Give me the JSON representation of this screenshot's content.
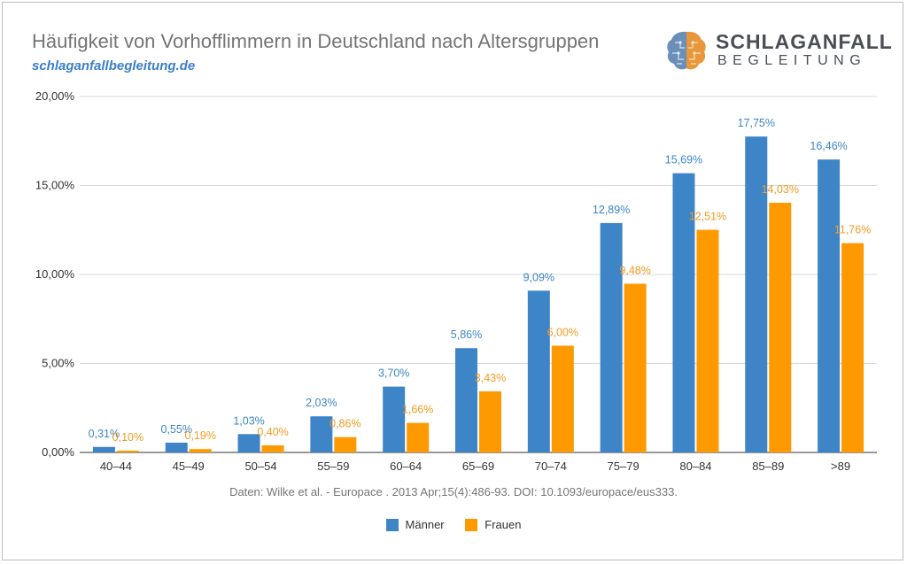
{
  "header": {
    "title": "Häufigkeit von Vorhofflimmern in Deutschland nach Altersgruppen",
    "subtitle": "schlaganfallbegleitung.de"
  },
  "logo": {
    "name": "SCHLAGANFALL",
    "tagline": "BEGLEITUNG",
    "icon": "brain-icon"
  },
  "source": "Daten: Wilke et al. - Europace . 2013 Apr;15(4):486-93. DOI: 10.1093/europace/eus333.",
  "colors": {
    "men": "#3d85c6",
    "women": "#ff9900",
    "men_label": "#3d85c6",
    "women_label": "#f29b21",
    "grid": "#d9d9d9",
    "axis_text": "#333333"
  },
  "chart_data": {
    "type": "bar",
    "categories": [
      "40–44",
      "45–49",
      "50–54",
      "55–59",
      "60–64",
      "65–69",
      "70–74",
      "75–79",
      "80–84",
      "85–89",
      ">89"
    ],
    "series": [
      {
        "name": "Männer",
        "values": [
          0.31,
          0.55,
          1.03,
          2.03,
          3.7,
          5.86,
          9.09,
          12.89,
          15.69,
          17.75,
          16.46
        ],
        "labels": [
          "0,31%",
          "0,55%",
          "1,03%",
          "2,03%",
          "3,70%",
          "5,86%",
          "9,09%",
          "12,89%",
          "15,69%",
          "17,75%",
          "16,46%"
        ]
      },
      {
        "name": "Frauen",
        "values": [
          0.1,
          0.19,
          0.4,
          0.86,
          1.66,
          3.43,
          6.0,
          9.48,
          12.51,
          14.03,
          11.76
        ],
        "labels": [
          "0,10%",
          "0,19%",
          "0,40%",
          "0,86%",
          "1,66%",
          "3,43%",
          "6,00%",
          "9,48%",
          "12,51%",
          "14,03%",
          "11,76%"
        ]
      }
    ],
    "ylim": [
      0,
      20
    ],
    "yticks": [
      0,
      5,
      10,
      15,
      20
    ],
    "ytick_labels": [
      "0,00%",
      "5,00%",
      "10,00%",
      "15,00%",
      "20,00%"
    ],
    "grid": true,
    "legend": "bottom"
  }
}
